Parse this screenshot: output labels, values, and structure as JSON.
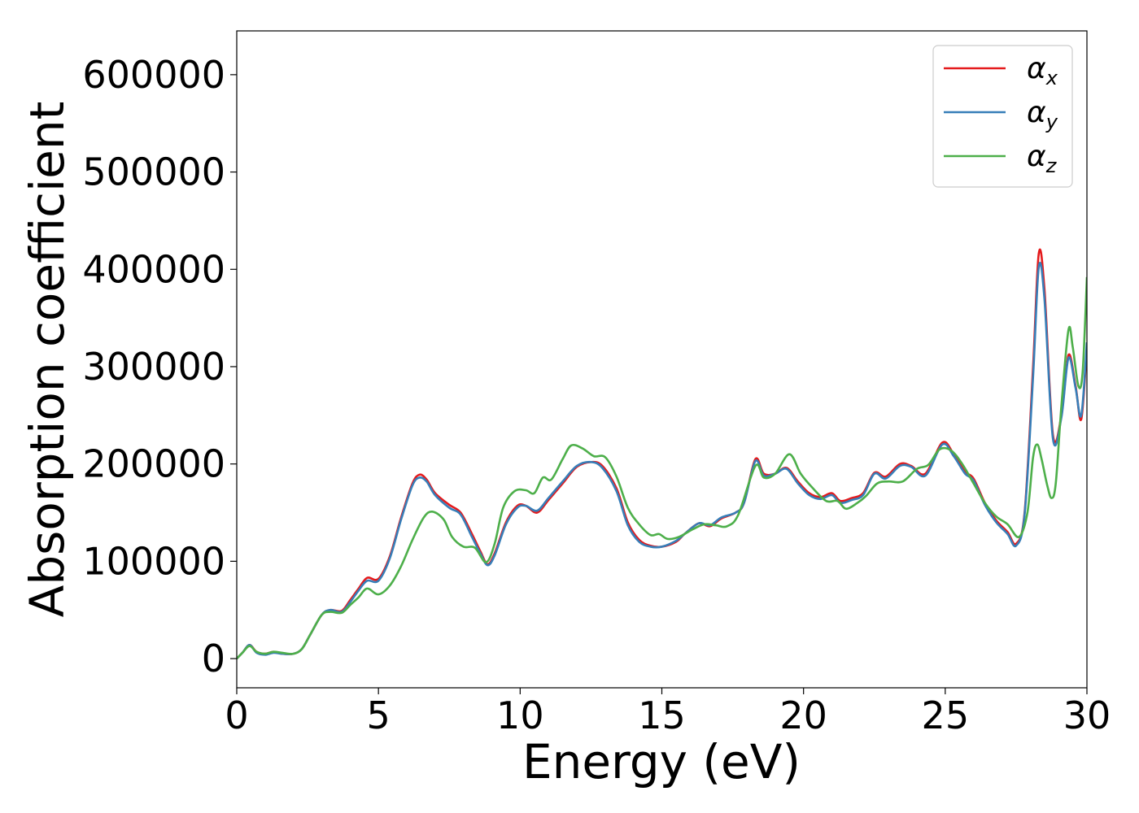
{
  "chart_data": {
    "type": "line",
    "title": "",
    "xlabel": "Energy (eV)",
    "ylabel": "Absorption coefficient",
    "xlim": [
      0,
      30
    ],
    "ylim": [
      -30000,
      645000
    ],
    "xticks": [
      0,
      5,
      10,
      15,
      20,
      25,
      30
    ],
    "yticks": [
      0,
      100000,
      200000,
      300000,
      400000,
      500000,
      600000
    ],
    "grid": false,
    "legend_position": "top-right",
    "series": [
      {
        "name": "α",
        "subscript": "x",
        "color": "#e41a1c",
        "points": [
          [
            0,
            0
          ],
          [
            0.2,
            6000
          ],
          [
            0.45,
            14000
          ],
          [
            0.7,
            7000
          ],
          [
            1,
            5000
          ],
          [
            1.3,
            7000
          ],
          [
            1.6,
            5000
          ],
          [
            2,
            5000
          ],
          [
            2.3,
            10000
          ],
          [
            2.6,
            25000
          ],
          [
            3,
            45000
          ],
          [
            3.3,
            50000
          ],
          [
            3.7,
            49000
          ],
          [
            4,
            60000
          ],
          [
            4.3,
            72000
          ],
          [
            4.6,
            83000
          ],
          [
            5,
            82000
          ],
          [
            5.4,
            105000
          ],
          [
            5.8,
            145000
          ],
          [
            6.2,
            180000
          ],
          [
            6.45,
            189000
          ],
          [
            6.7,
            184000
          ],
          [
            7,
            170000
          ],
          [
            7.5,
            158000
          ],
          [
            7.9,
            150000
          ],
          [
            8.3,
            128000
          ],
          [
            8.6,
            110000
          ],
          [
            8.85,
            97000
          ],
          [
            9.1,
            108000
          ],
          [
            9.5,
            140000
          ],
          [
            9.9,
            157000
          ],
          [
            10.2,
            157000
          ],
          [
            10.6,
            150000
          ],
          [
            11,
            163000
          ],
          [
            11.5,
            180000
          ],
          [
            12,
            197000
          ],
          [
            12.5,
            202000
          ],
          [
            12.9,
            198000
          ],
          [
            13.4,
            175000
          ],
          [
            13.8,
            140000
          ],
          [
            14.2,
            122000
          ],
          [
            14.6,
            116000
          ],
          [
            15,
            115000
          ],
          [
            15.5,
            120000
          ],
          [
            15.8,
            128000
          ],
          [
            16.3,
            139000
          ],
          [
            16.7,
            136000
          ],
          [
            17.1,
            144000
          ],
          [
            17.6,
            150000
          ],
          [
            17.9,
            160000
          ],
          [
            18.3,
            205000
          ],
          [
            18.6,
            190000
          ],
          [
            19,
            190000
          ],
          [
            19.4,
            196000
          ],
          [
            19.8,
            182000
          ],
          [
            20.2,
            170000
          ],
          [
            20.6,
            166000
          ],
          [
            21,
            170000
          ],
          [
            21.3,
            162000
          ],
          [
            21.7,
            165000
          ],
          [
            22.1,
            170000
          ],
          [
            22.5,
            191000
          ],
          [
            22.9,
            187000
          ],
          [
            23.4,
            200000
          ],
          [
            23.8,
            198000
          ],
          [
            24.3,
            190000
          ],
          [
            24.9,
            222000
          ],
          [
            25.3,
            210000
          ],
          [
            25.7,
            192000
          ],
          [
            26,
            185000
          ],
          [
            26.4,
            160000
          ],
          [
            26.8,
            142000
          ],
          [
            27.2,
            130000
          ],
          [
            27.5,
            118000
          ],
          [
            27.8,
            150000
          ],
          [
            28.1,
            300000
          ],
          [
            28.3,
            416000
          ],
          [
            28.5,
            380000
          ],
          [
            28.8,
            230000
          ],
          [
            29.1,
            250000
          ],
          [
            29.35,
            312000
          ],
          [
            29.6,
            280000
          ],
          [
            29.8,
            246000
          ],
          [
            30,
            320000
          ]
        ]
      },
      {
        "name": "α",
        "subscript": "y",
        "color": "#377eb8",
        "points": [
          [
            0,
            0
          ],
          [
            0.2,
            6000
          ],
          [
            0.45,
            14000
          ],
          [
            0.7,
            6000
          ],
          [
            1,
            4000
          ],
          [
            1.3,
            6000
          ],
          [
            1.6,
            5000
          ],
          [
            2,
            5000
          ],
          [
            2.3,
            10000
          ],
          [
            2.6,
            25000
          ],
          [
            3,
            45000
          ],
          [
            3.3,
            50000
          ],
          [
            3.7,
            48000
          ],
          [
            4,
            58000
          ],
          [
            4.3,
            70000
          ],
          [
            4.6,
            80000
          ],
          [
            5,
            80000
          ],
          [
            5.4,
            103000
          ],
          [
            5.8,
            143000
          ],
          [
            6.2,
            178000
          ],
          [
            6.45,
            186000
          ],
          [
            6.7,
            182000
          ],
          [
            7,
            168000
          ],
          [
            7.5,
            155000
          ],
          [
            7.9,
            148000
          ],
          [
            8.3,
            125000
          ],
          [
            8.6,
            108000
          ],
          [
            8.85,
            96000
          ],
          [
            9.1,
            106000
          ],
          [
            9.5,
            138000
          ],
          [
            9.9,
            155000
          ],
          [
            10.2,
            157000
          ],
          [
            10.6,
            152000
          ],
          [
            11,
            165000
          ],
          [
            11.5,
            182000
          ],
          [
            12,
            198000
          ],
          [
            12.5,
            202000
          ],
          [
            12.9,
            196000
          ],
          [
            13.4,
            172000
          ],
          [
            13.8,
            137000
          ],
          [
            14.2,
            120000
          ],
          [
            14.6,
            115000
          ],
          [
            15,
            115000
          ],
          [
            15.5,
            121000
          ],
          [
            15.8,
            128000
          ],
          [
            16.3,
            139000
          ],
          [
            16.7,
            137000
          ],
          [
            17.1,
            145000
          ],
          [
            17.6,
            150000
          ],
          [
            17.9,
            160000
          ],
          [
            18.3,
            203000
          ],
          [
            18.6,
            188000
          ],
          [
            19,
            190000
          ],
          [
            19.4,
            195000
          ],
          [
            19.8,
            180000
          ],
          [
            20.2,
            168000
          ],
          [
            20.6,
            164000
          ],
          [
            21,
            168000
          ],
          [
            21.3,
            160000
          ],
          [
            21.7,
            163000
          ],
          [
            22.1,
            168000
          ],
          [
            22.5,
            190000
          ],
          [
            22.9,
            185000
          ],
          [
            23.4,
            198000
          ],
          [
            23.8,
            197000
          ],
          [
            24.3,
            188000
          ],
          [
            24.9,
            220000
          ],
          [
            25.3,
            208000
          ],
          [
            25.7,
            190000
          ],
          [
            26,
            183000
          ],
          [
            26.4,
            158000
          ],
          [
            26.8,
            140000
          ],
          [
            27.2,
            128000
          ],
          [
            27.5,
            116000
          ],
          [
            27.8,
            148000
          ],
          [
            28.1,
            290000
          ],
          [
            28.3,
            402000
          ],
          [
            28.5,
            370000
          ],
          [
            28.8,
            226000
          ],
          [
            29.1,
            248000
          ],
          [
            29.35,
            309000
          ],
          [
            29.6,
            278000
          ],
          [
            29.8,
            250000
          ],
          [
            30,
            325000
          ]
        ]
      },
      {
        "name": "α",
        "subscript": "z",
        "color": "#4daf4a",
        "points": [
          [
            0,
            0
          ],
          [
            0.2,
            6000
          ],
          [
            0.45,
            13000
          ],
          [
            0.7,
            7000
          ],
          [
            1,
            5000
          ],
          [
            1.3,
            7000
          ],
          [
            1.6,
            6000
          ],
          [
            2,
            5000
          ],
          [
            2.3,
            10000
          ],
          [
            2.6,
            25000
          ],
          [
            3,
            45000
          ],
          [
            3.3,
            48000
          ],
          [
            3.7,
            47000
          ],
          [
            4,
            55000
          ],
          [
            4.3,
            63000
          ],
          [
            4.6,
            72000
          ],
          [
            5,
            66000
          ],
          [
            5.4,
            75000
          ],
          [
            5.8,
            95000
          ],
          [
            6.2,
            122000
          ],
          [
            6.6,
            145000
          ],
          [
            6.9,
            151000
          ],
          [
            7.3,
            143000
          ],
          [
            7.6,
            125000
          ],
          [
            8,
            115000
          ],
          [
            8.4,
            114000
          ],
          [
            8.8,
            99000
          ],
          [
            9.1,
            118000
          ],
          [
            9.4,
            155000
          ],
          [
            9.8,
            172000
          ],
          [
            10.2,
            173000
          ],
          [
            10.5,
            170000
          ],
          [
            10.8,
            186000
          ],
          [
            11.1,
            184000
          ],
          [
            11.5,
            205000
          ],
          [
            11.8,
            219000
          ],
          [
            12.2,
            216000
          ],
          [
            12.6,
            208000
          ],
          [
            13,
            207000
          ],
          [
            13.4,
            187000
          ],
          [
            13.8,
            155000
          ],
          [
            14.2,
            138000
          ],
          [
            14.6,
            127000
          ],
          [
            14.9,
            128000
          ],
          [
            15.2,
            123000
          ],
          [
            15.6,
            125000
          ],
          [
            16.1,
            133000
          ],
          [
            16.5,
            138000
          ],
          [
            16.9,
            137000
          ],
          [
            17.3,
            136000
          ],
          [
            17.7,
            148000
          ],
          [
            18.3,
            198000
          ],
          [
            18.6,
            186000
          ],
          [
            19,
            190000
          ],
          [
            19.5,
            210000
          ],
          [
            19.9,
            190000
          ],
          [
            20.3,
            176000
          ],
          [
            20.8,
            162000
          ],
          [
            21.2,
            162000
          ],
          [
            21.5,
            154000
          ],
          [
            21.9,
            160000
          ],
          [
            22.2,
            167000
          ],
          [
            22.6,
            180000
          ],
          [
            23,
            182000
          ],
          [
            23.5,
            182000
          ],
          [
            24,
            195000
          ],
          [
            24.4,
            199000
          ],
          [
            24.8,
            215000
          ],
          [
            25.2,
            214000
          ],
          [
            25.6,
            200000
          ],
          [
            26,
            180000
          ],
          [
            26.4,
            160000
          ],
          [
            26.8,
            146000
          ],
          [
            27.2,
            138000
          ],
          [
            27.6,
            125000
          ],
          [
            27.9,
            150000
          ],
          [
            28.1,
            207000
          ],
          [
            28.25,
            220000
          ],
          [
            28.4,
            205000
          ],
          [
            28.6,
            178000
          ],
          [
            28.75,
            165000
          ],
          [
            28.9,
            180000
          ],
          [
            29.1,
            260000
          ],
          [
            29.35,
            338000
          ],
          [
            29.5,
            320000
          ],
          [
            29.7,
            280000
          ],
          [
            29.85,
            295000
          ],
          [
            30,
            392000
          ]
        ]
      }
    ]
  }
}
